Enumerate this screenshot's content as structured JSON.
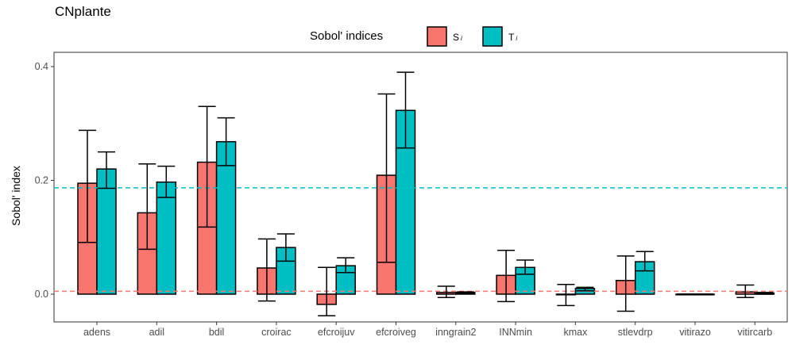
{
  "chart_data": {
    "type": "bar",
    "title": "CNplante",
    "legend": {
      "title": "Sobol' indices",
      "placement": "top",
      "entries": [
        {
          "key": "Si",
          "label": "S",
          "sub": "i",
          "color": "#F8766D"
        },
        {
          "key": "Ti",
          "label": "T",
          "sub": "i",
          "color": "#00BFC4"
        }
      ]
    },
    "ylabel": "Sobol' index",
    "xlabel": "",
    "ylim": [
      -0.05,
      0.41
    ],
    "yticks": [
      "0.0",
      "0.2",
      "0.4"
    ],
    "ytick_values": [
      0.0,
      0.2,
      0.4
    ],
    "grid": false,
    "categories": [
      "adens",
      "adil",
      "bdil",
      "croirac",
      "efcroijuv",
      "efcroiveg",
      "inngrain2",
      "INNmin",
      "kmax",
      "stlevdrp",
      "vitirazo",
      "vitircarb"
    ],
    "series": [
      {
        "key": "Si",
        "color": "#F8766D",
        "values": [
          0.195,
          0.143,
          0.232,
          0.046,
          -0.018,
          0.209,
          0.003,
          0.033,
          0.0,
          0.024,
          0.0,
          0.004
        ],
        "lower": [
          0.091,
          0.079,
          0.118,
          -0.012,
          -0.038,
          0.056,
          -0.006,
          -0.013,
          -0.02,
          -0.03,
          0.0,
          -0.006
        ],
        "upper": [
          0.288,
          0.229,
          0.33,
          0.097,
          0.047,
          0.352,
          0.014,
          0.077,
          0.017,
          0.067,
          0.0,
          0.016
        ]
      },
      {
        "key": "Ti",
        "color": "#00BFC4",
        "values": [
          0.22,
          0.197,
          0.268,
          0.082,
          0.05,
          0.323,
          0.003,
          0.047,
          0.01,
          0.057,
          0.0,
          0.002
        ],
        "lower": [
          0.186,
          0.17,
          0.226,
          0.058,
          0.038,
          0.257,
          0.001,
          0.035,
          0.006,
          0.041,
          0.0,
          0.0
        ],
        "upper": [
          0.25,
          0.225,
          0.31,
          0.106,
          0.064,
          0.39,
          0.004,
          0.06,
          0.012,
          0.075,
          0.0,
          0.003
        ]
      }
    ],
    "reference_lines": [
      {
        "series": "Si",
        "value": 0.005,
        "color": "#F8766D",
        "style": "dashed"
      },
      {
        "series": "Ti",
        "value": 0.187,
        "color": "#00BFC4",
        "style": "dashed"
      }
    ]
  }
}
